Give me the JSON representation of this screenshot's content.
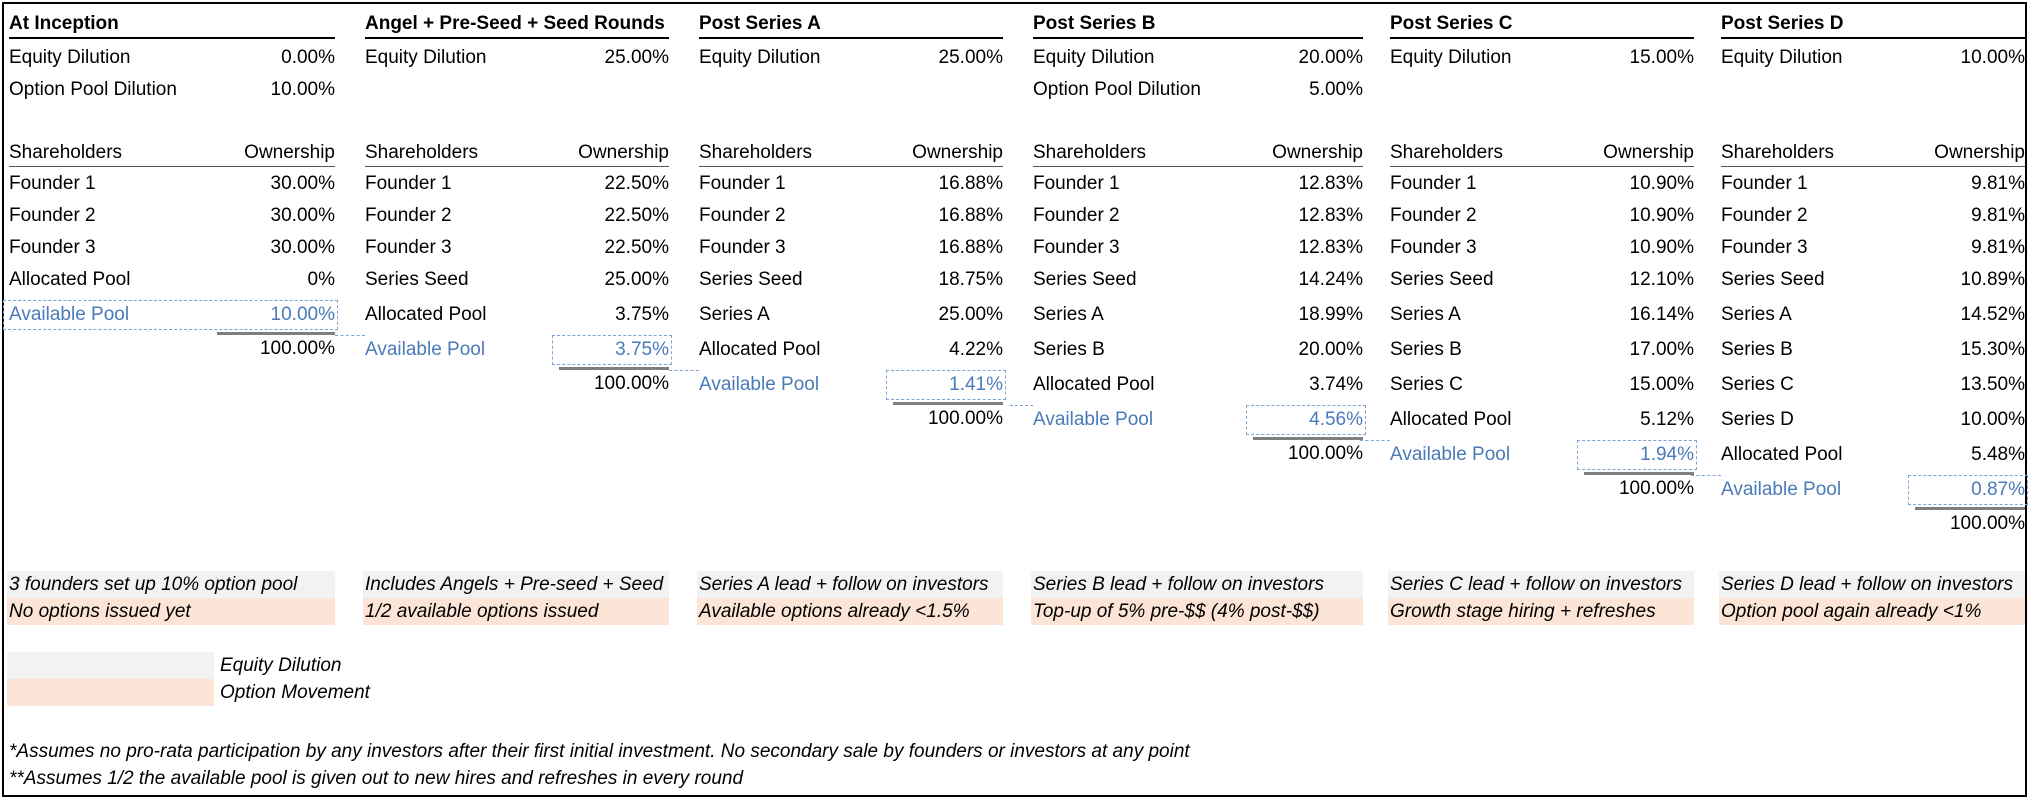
{
  "columns": [
    {
      "title": "At Inception",
      "dilution": [
        [
          "Equity Dilution",
          "0.00%"
        ],
        [
          "Option Pool Dilution",
          "10.00%"
        ]
      ],
      "header": {
        "label": "Shareholders",
        "value": "Ownership"
      },
      "rows": [
        [
          "Founder 1",
          "30.00%"
        ],
        [
          "Founder 2",
          "30.00%"
        ],
        [
          "Founder 3",
          "30.00%"
        ],
        [
          "Allocated Pool",
          "0%"
        ]
      ],
      "pool": {
        "label": "Available Pool",
        "value": "10.00%"
      },
      "total": "100.00%",
      "notes": {
        "equity": "3 founders set up 10% option pool",
        "option": "No options issued yet"
      }
    },
    {
      "title": "Angel + Pre-Seed + Seed Rounds",
      "dilution": [
        [
          "Equity Dilution",
          "25.00%"
        ]
      ],
      "header": {
        "label": "Shareholders",
        "value": "Ownership"
      },
      "rows": [
        [
          "Founder 1",
          "22.50%"
        ],
        [
          "Founder 2",
          "22.50%"
        ],
        [
          "Founder 3",
          "22.50%"
        ],
        [
          "Series Seed",
          "25.00%"
        ],
        [
          "Allocated Pool",
          "3.75%"
        ]
      ],
      "pool": {
        "label": "Available Pool",
        "value": "3.75%"
      },
      "total": "100.00%",
      "notes": {
        "equity": "Includes Angels + Pre-seed + Seed",
        "option": "1/2 available options issued"
      }
    },
    {
      "title": "Post Series A",
      "dilution": [
        [
          "Equity Dilution",
          "25.00%"
        ]
      ],
      "header": {
        "label": "Shareholders",
        "value": "Ownership"
      },
      "rows": [
        [
          "Founder 1",
          "16.88%"
        ],
        [
          "Founder 2",
          "16.88%"
        ],
        [
          "Founder 3",
          "16.88%"
        ],
        [
          "Series Seed",
          "18.75%"
        ],
        [
          "Series A",
          "25.00%"
        ],
        [
          "Allocated Pool",
          "4.22%"
        ]
      ],
      "pool": {
        "label": "Available Pool",
        "value": "1.41%"
      },
      "total": "100.00%",
      "notes": {
        "equity": "Series A lead + follow on investors",
        "option": "Available options already <1.5%"
      }
    },
    {
      "title": "Post Series B",
      "dilution": [
        [
          "Equity Dilution",
          "20.00%"
        ],
        [
          "Option Pool Dilution",
          "5.00%"
        ]
      ],
      "header": {
        "label": "Shareholders",
        "value": "Ownership"
      },
      "rows": [
        [
          "Founder 1",
          "12.83%"
        ],
        [
          "Founder 2",
          "12.83%"
        ],
        [
          "Founder 3",
          "12.83%"
        ],
        [
          "Series Seed",
          "14.24%"
        ],
        [
          "Series A",
          "18.99%"
        ],
        [
          "Series B",
          "20.00%"
        ],
        [
          "Allocated Pool",
          "3.74%"
        ]
      ],
      "pool": {
        "label": "Available Pool",
        "value": "4.56%"
      },
      "total": "100.00%",
      "notes": {
        "equity": "Series B lead + follow on investors",
        "option": "Top-up of 5% pre-$$ (4% post-$$)"
      }
    },
    {
      "title": "Post Series C",
      "dilution": [
        [
          "Equity Dilution",
          "15.00%"
        ]
      ],
      "header": {
        "label": "Shareholders",
        "value": "Ownership"
      },
      "rows": [
        [
          "Founder 1",
          "10.90%"
        ],
        [
          "Founder 2",
          "10.90%"
        ],
        [
          "Founder 3",
          "10.90%"
        ],
        [
          "Series Seed",
          "12.10%"
        ],
        [
          "Series A",
          "16.14%"
        ],
        [
          "Series B",
          "17.00%"
        ],
        [
          "Series C",
          "15.00%"
        ],
        [
          "Allocated Pool",
          "5.12%"
        ]
      ],
      "pool": {
        "label": "Available Pool",
        "value": "1.94%"
      },
      "total": "100.00%",
      "notes": {
        "equity": "Series C lead + follow on investors",
        "option": "Growth stage hiring + refreshes"
      }
    },
    {
      "title": "Post Series D",
      "dilution": [
        [
          "Equity Dilution",
          "10.00%"
        ]
      ],
      "header": {
        "label": "Shareholders",
        "value": "Ownership"
      },
      "rows": [
        [
          "Founder 1",
          "9.81%"
        ],
        [
          "Founder 2",
          "9.81%"
        ],
        [
          "Founder 3",
          "9.81%"
        ],
        [
          "Series Seed",
          "10.89%"
        ],
        [
          "Series A",
          "14.52%"
        ],
        [
          "Series B",
          "15.30%"
        ],
        [
          "Series C",
          "13.50%"
        ],
        [
          "Series D",
          "10.00%"
        ],
        [
          "Allocated Pool",
          "5.48%"
        ]
      ],
      "pool": {
        "label": "Available Pool",
        "value": "0.87%"
      },
      "total": "100.00%",
      "notes": {
        "equity": "Series D lead + follow on investors",
        "option": "Option pool again already <1%"
      }
    }
  ],
  "legend": {
    "equity": "Equity Dilution",
    "option": "Option Movement"
  },
  "footnotes": [
    "*Assumes no pro-rata participation by any investors after their first initial investment. No secondary sale by founders or investors at any point",
    "**Assumes 1/2 the available pool is given out to new hires and refreshes in every round"
  ],
  "colors": {
    "blue": "#4a7ab8",
    "equity_bg": "#f2f2f2",
    "option_bg": "#fce4d6",
    "dash": "#7aa3d6",
    "total_line": "#7f7f7f"
  }
}
